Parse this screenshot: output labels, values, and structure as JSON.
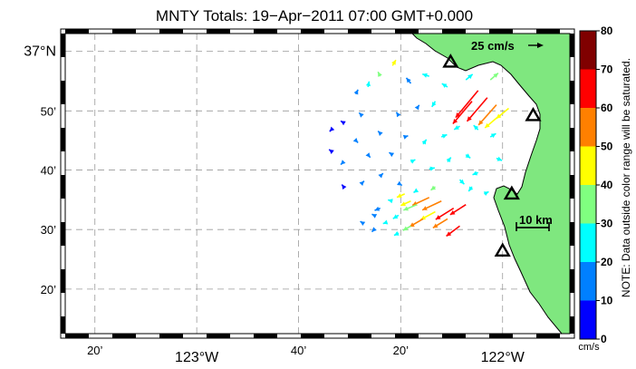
{
  "chart_data": {
    "type": "vector-field",
    "title": "MNTY Totals: 19−Apr−2011 07:00 GMT+0.000",
    "x_ticks": [
      {
        "lon": -123.333,
        "label": "20’"
      },
      {
        "lon": -123.0,
        "label": "123°W"
      },
      {
        "lon": -122.667,
        "label": "40’"
      },
      {
        "lon": -122.333,
        "label": "20’"
      },
      {
        "lon": -122.0,
        "label": "122°W"
      }
    ],
    "y_ticks": [
      {
        "lat": 37.0,
        "label": "37°N"
      },
      {
        "lat": 36.833,
        "label": "50’"
      },
      {
        "lat": 36.667,
        "label": "40’"
      },
      {
        "lat": 36.5,
        "label": "30’"
      },
      {
        "lat": 36.333,
        "label": "20’"
      }
    ],
    "xlim": [
      -123.43,
      -121.78
    ],
    "ylim": [
      36.208,
      37.05
    ],
    "grid": true,
    "colorbar": {
      "ticks": [
        0,
        10,
        20,
        30,
        40,
        50,
        60,
        70,
        80
      ],
      "labels": [
        "0",
        "10",
        "20",
        "30",
        "40",
        "50",
        "60",
        "70",
        "80"
      ],
      "colors": [
        "#0000ff",
        "#0080ff",
        "#00ffff",
        "#80ff80",
        "#ffff00",
        "#ff8000",
        "#ff0000",
        "#800000"
      ],
      "units": "cm/s",
      "note": "NOTE: Data outside color range will be saturated."
    },
    "reference_vector": {
      "speed": 25,
      "label": "25 cm/s"
    },
    "scale_bar": {
      "label": "10 km"
    },
    "land_color": "#7fe77f",
    "stations": [
      {
        "lon": -122.17,
        "lat": 36.97
      },
      {
        "lon": -121.9,
        "lat": 36.82
      },
      {
        "lon": -121.97,
        "lat": 36.6
      },
      {
        "lon": -122.0,
        "lat": 36.44
      }
    ],
    "vectors": [
      {
        "lon": -122.08,
        "lat": 36.89,
        "u": -40,
        "v": -48,
        "speed": 68
      },
      {
        "lon": -122.05,
        "lat": 36.87,
        "u": -36,
        "v": -42,
        "speed": 62
      },
      {
        "lon": -122.02,
        "lat": 36.85,
        "u": -32,
        "v": -36,
        "speed": 54
      },
      {
        "lon": -122.1,
        "lat": 36.86,
        "u": -34,
        "v": -40,
        "speed": 66
      },
      {
        "lon": -122.01,
        "lat": 36.82,
        "u": -26,
        "v": -22,
        "speed": 48
      },
      {
        "lon": -121.98,
        "lat": 36.84,
        "u": -22,
        "v": -18,
        "speed": 40
      },
      {
        "lon": -122.04,
        "lat": 36.92,
        "u": 14,
        "v": 12,
        "speed": 32
      },
      {
        "lon": -122.12,
        "lat": 36.92,
        "u": 12,
        "v": 10,
        "speed": 28
      },
      {
        "lon": -122.18,
        "lat": 36.9,
        "u": -10,
        "v": 6,
        "speed": 22
      },
      {
        "lon": -122.24,
        "lat": 36.93,
        "u": -12,
        "v": 4,
        "speed": 20
      },
      {
        "lon": -122.3,
        "lat": 36.91,
        "u": -8,
        "v": 10,
        "speed": 18
      },
      {
        "lon": -122.36,
        "lat": 36.96,
        "u": 6,
        "v": 10,
        "speed": 40
      },
      {
        "lon": -122.4,
        "lat": 36.93,
        "u": -4,
        "v": 8,
        "speed": 32
      },
      {
        "lon": -122.44,
        "lat": 36.9,
        "u": 2,
        "v": 10,
        "speed": 22
      },
      {
        "lon": -122.48,
        "lat": 36.88,
        "u": 4,
        "v": 8,
        "speed": 14
      },
      {
        "lon": -122.22,
        "lat": 36.86,
        "u": -6,
        "v": -10,
        "speed": 24
      },
      {
        "lon": -122.28,
        "lat": 36.84,
        "u": 4,
        "v": 6,
        "speed": 16
      },
      {
        "lon": -122.34,
        "lat": 36.82,
        "u": -4,
        "v": 6,
        "speed": 14
      },
      {
        "lon": -122.46,
        "lat": 36.82,
        "u": -5,
        "v": 5,
        "speed": 12
      },
      {
        "lon": -122.52,
        "lat": 36.8,
        "u": -5,
        "v": 3,
        "speed": 8
      },
      {
        "lon": -122.14,
        "lat": 36.79,
        "u": -10,
        "v": -6,
        "speed": 26
      },
      {
        "lon": -122.2,
        "lat": 36.76,
        "u": 10,
        "v": 4,
        "speed": 24
      },
      {
        "lon": -122.26,
        "lat": 36.74,
        "u": 6,
        "v": 8,
        "speed": 20
      },
      {
        "lon": -122.32,
        "lat": 36.76,
        "u": 6,
        "v": 2,
        "speed": 16
      },
      {
        "lon": -122.4,
        "lat": 36.77,
        "u": -4,
        "v": 4,
        "speed": 12
      },
      {
        "lon": -122.48,
        "lat": 36.75,
        "u": 4,
        "v": -4,
        "speed": 10
      },
      {
        "lon": -122.56,
        "lat": 36.78,
        "u": -3,
        "v": -3,
        "speed": 6
      },
      {
        "lon": -122.08,
        "lat": 36.78,
        "u": -8,
        "v": 8,
        "speed": 24
      },
      {
        "lon": -122.04,
        "lat": 36.76,
        "u": 10,
        "v": 6,
        "speed": 22
      },
      {
        "lon": -122.12,
        "lat": 36.71,
        "u": 8,
        "v": -6,
        "speed": 20
      },
      {
        "lon": -122.18,
        "lat": 36.69,
        "u": 6,
        "v": 8,
        "speed": 26
      },
      {
        "lon": -122.24,
        "lat": 36.67,
        "u": 10,
        "v": 2,
        "speed": 22
      },
      {
        "lon": -122.3,
        "lat": 36.69,
        "u": 8,
        "v": 4,
        "speed": 24
      },
      {
        "lon": -122.36,
        "lat": 36.71,
        "u": -6,
        "v": 4,
        "speed": 16
      },
      {
        "lon": -122.44,
        "lat": 36.71,
        "u": 4,
        "v": -5,
        "speed": 12
      },
      {
        "lon": -122.52,
        "lat": 36.69,
        "u": -5,
        "v": -5,
        "speed": 10
      },
      {
        "lon": -122.56,
        "lat": 36.72,
        "u": -4,
        "v": 3,
        "speed": 8
      },
      {
        "lon": -122.08,
        "lat": 36.66,
        "u": -10,
        "v": -4,
        "speed": 22
      },
      {
        "lon": -122.02,
        "lat": 36.7,
        "u": 10,
        "v": -4,
        "speed": 20
      },
      {
        "lon": -122.14,
        "lat": 36.64,
        "u": 8,
        "v": -8,
        "speed": 24
      },
      {
        "lon": -122.22,
        "lat": 36.62,
        "u": -8,
        "v": -6,
        "speed": 30
      },
      {
        "lon": -122.28,
        "lat": 36.61,
        "u": -6,
        "v": -4,
        "speed": 26
      },
      {
        "lon": -122.34,
        "lat": 36.63,
        "u": 6,
        "v": -4,
        "speed": 18
      },
      {
        "lon": -122.4,
        "lat": 36.65,
        "u": 5,
        "v": 5,
        "speed": 14
      },
      {
        "lon": -122.46,
        "lat": 36.63,
        "u": 4,
        "v": 4,
        "speed": 12
      },
      {
        "lon": -122.52,
        "lat": 36.62,
        "u": -3,
        "v": 4,
        "speed": 6
      },
      {
        "lon": -122.24,
        "lat": 36.59,
        "u": -30,
        "v": -14,
        "speed": 50
      },
      {
        "lon": -122.2,
        "lat": 36.58,
        "u": -34,
        "v": -16,
        "speed": 56
      },
      {
        "lon": -122.16,
        "lat": 36.56,
        "u": -32,
        "v": -20,
        "speed": 64
      },
      {
        "lon": -122.12,
        "lat": 36.57,
        "u": -28,
        "v": -18,
        "speed": 60
      },
      {
        "lon": -122.22,
        "lat": 36.55,
        "u": -26,
        "v": -14,
        "speed": 46
      },
      {
        "lon": -122.28,
        "lat": 36.57,
        "u": -24,
        "v": -10,
        "speed": 38
      },
      {
        "lon": -122.26,
        "lat": 36.53,
        "u": -24,
        "v": -14,
        "speed": 56
      },
      {
        "lon": -122.18,
        "lat": 36.53,
        "u": -26,
        "v": -16,
        "speed": 58
      },
      {
        "lon": -122.14,
        "lat": 36.51,
        "u": -24,
        "v": -18,
        "speed": 62
      },
      {
        "lon": -122.3,
        "lat": 36.51,
        "u": -14,
        "v": -8,
        "speed": 34
      },
      {
        "lon": -122.34,
        "lat": 36.54,
        "u": -10,
        "v": -6,
        "speed": 28
      },
      {
        "lon": -122.36,
        "lat": 36.58,
        "u": -8,
        "v": 2,
        "speed": 20
      },
      {
        "lon": -122.4,
        "lat": 36.56,
        "u": -10,
        "v": -4,
        "speed": 14
      },
      {
        "lon": -122.32,
        "lat": 36.6,
        "u": -14,
        "v": -6,
        "speed": 44
      },
      {
        "lon": -122.3,
        "lat": 36.58,
        "u": -18,
        "v": -8,
        "speed": 40
      },
      {
        "lon": -122.34,
        "lat": 36.49,
        "u": -8,
        "v": -4,
        "speed": 26
      },
      {
        "lon": -122.38,
        "lat": 36.52,
        "u": -6,
        "v": -2,
        "speed": 22
      },
      {
        "lon": -122.42,
        "lat": 36.54,
        "u": -4,
        "v": 2,
        "speed": 12
      },
      {
        "lon": -122.42,
        "lat": 36.5,
        "u": -4,
        "v": -4,
        "speed": 16
      },
      {
        "lon": -122.46,
        "lat": 36.52,
        "u": -3,
        "v": 2,
        "speed": 10
      },
      {
        "lon": -122.1,
        "lat": 36.62,
        "u": -6,
        "v": -8,
        "speed": 26
      },
      {
        "lon": -122.06,
        "lat": 36.6,
        "u": 8,
        "v": 4,
        "speed": 22
      }
    ]
  }
}
